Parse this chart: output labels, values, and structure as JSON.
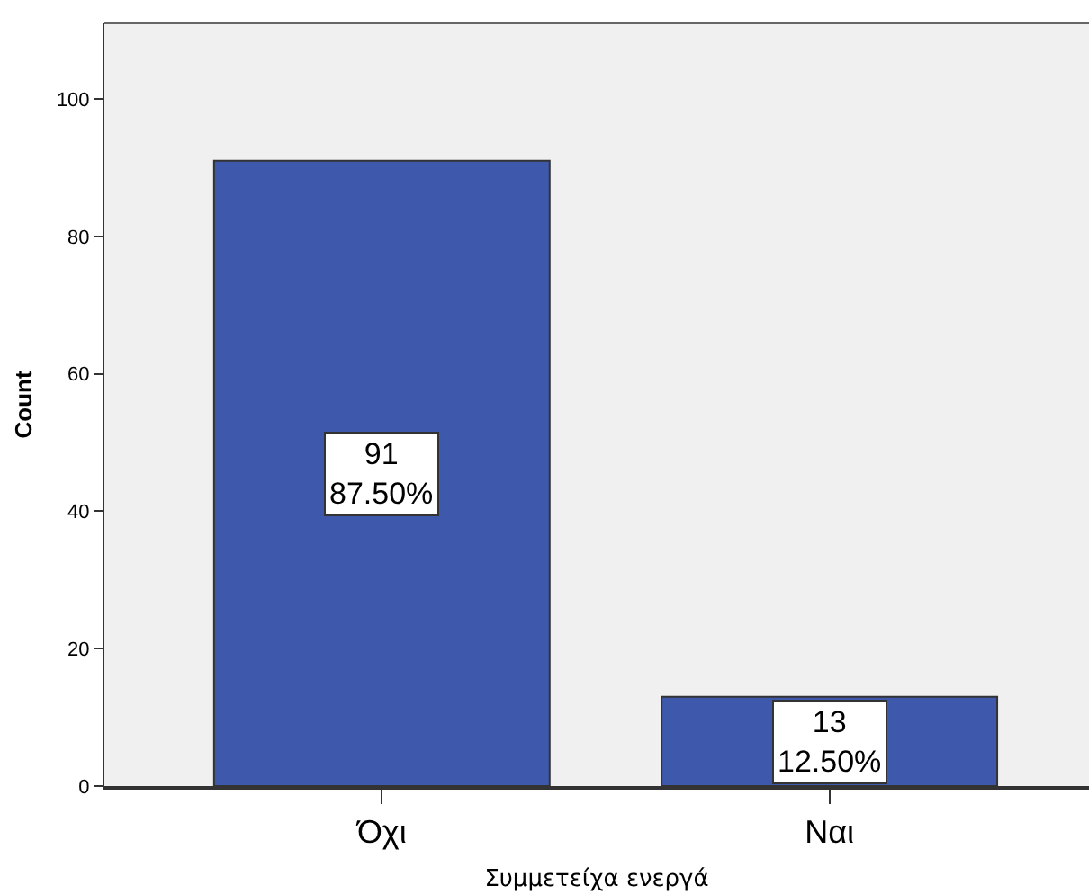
{
  "chart_data": {
    "type": "bar",
    "xlabel": "Συμμετείχα ενεργά",
    "ylabel": "Count",
    "categories": [
      "Όχι",
      "Ναι"
    ],
    "values": [
      91,
      13
    ],
    "value_labels": [
      "91\n87.50%",
      "13\n12.50%"
    ],
    "color": "#3e58ac",
    "ylim": [
      0,
      111
    ],
    "yticks": [
      0,
      20,
      40,
      60,
      80,
      100
    ],
    "grid": false
  }
}
